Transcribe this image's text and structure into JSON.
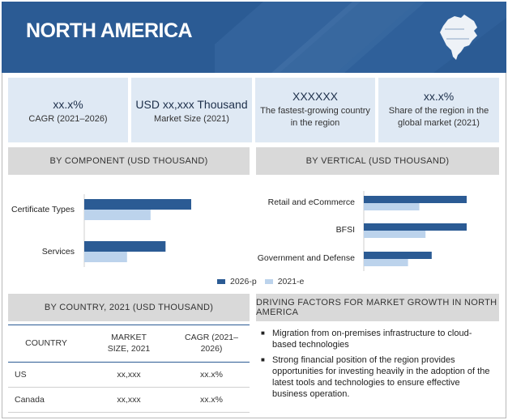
{
  "header": {
    "title": "NORTH AMERICA",
    "map_icon": "north-america-map-icon"
  },
  "stats": [
    {
      "big": "xx.x%",
      "small": "CAGR (2021–2026)"
    },
    {
      "big": "USD xx,xxx Thousand",
      "small": "Market Size (2021)"
    },
    {
      "big": "XXXXXX",
      "small": "The fastest-growing country in the region"
    },
    {
      "big": "xx.x%",
      "small": "Share of the region in the global market (2021)"
    }
  ],
  "sections": {
    "component": "BY COMPONENT (USD THOUSAND)",
    "vertical": "BY VERTICAL (USD THOUSAND)",
    "country": "BY COUNTRY, 2021 (USD THOUSAND)",
    "drivers": "DRIVING FACTORS FOR MARKET GROWTH IN NORTH AMERICA"
  },
  "colors": {
    "series_2026": "#2b5b94",
    "series_2021": "#bcd3ec",
    "header": "#2b5b94"
  },
  "chart_data": [
    {
      "type": "bar",
      "orientation": "horizontal",
      "title": "BY COMPONENT (USD THOUSAND)",
      "categories": [
        "Certificate Types",
        "Services"
      ],
      "series": [
        {
          "name": "2026-p",
          "values": [
            100,
            76
          ]
        },
        {
          "name": "2021-e",
          "values": [
            62,
            40
          ]
        }
      ],
      "xlim": [
        0,
        100
      ],
      "note": "bar lengths relative; no values printed"
    },
    {
      "type": "bar",
      "orientation": "horizontal",
      "title": "BY VERTICAL (USD THOUSAND)",
      "categories": [
        "Retail and eCommerce",
        "BFSI",
        "Government and Defense"
      ],
      "series": [
        {
          "name": "2026-p",
          "values": [
            100,
            100,
            66
          ]
        },
        {
          "name": "2021-e",
          "values": [
            54,
            60,
            43
          ]
        }
      ],
      "xlim": [
        0,
        100
      ]
    }
  ],
  "legend": {
    "a": "2026-p",
    "b": "2021-e"
  },
  "table": {
    "headers": [
      "COUNTRY",
      "MARKET SIZE, 2021",
      "CAGR (2021–2026)"
    ],
    "rows": [
      [
        "US",
        "xx,xxx",
        "xx.x%"
      ],
      [
        "Canada",
        "xx,xxx",
        "xx.x%"
      ]
    ]
  },
  "drivers": [
    "Migration from on-premises infrastructure to cloud-based technologies",
    "Strong financial position of the region provides opportunities for investing heavily in the adoption of the latest tools and technologies to ensure effective business operation."
  ]
}
